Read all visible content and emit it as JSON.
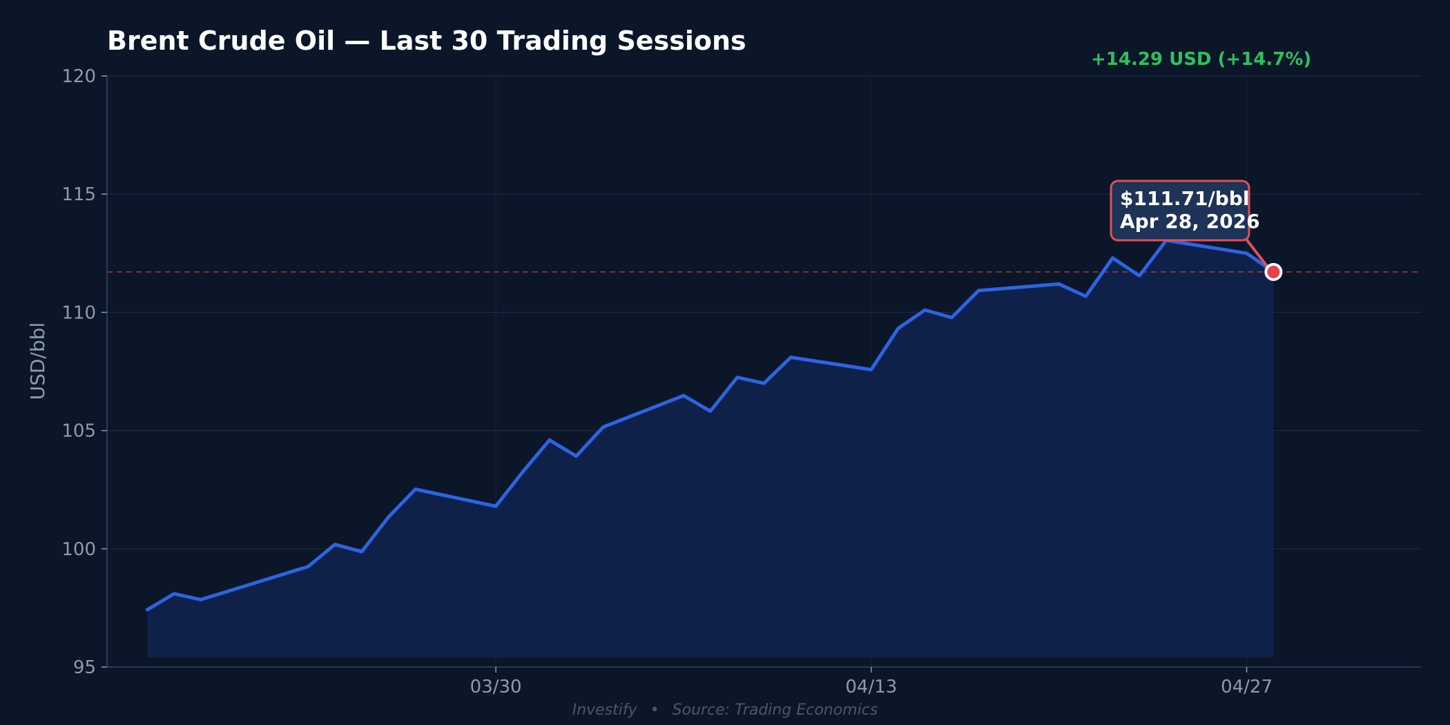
{
  "chart_data": {
    "type": "area",
    "title": "Brent Crude Oil — Last 30 Trading Sessions",
    "xlabel": "",
    "ylabel": "USD/bbl",
    "ylim": [
      95,
      120
    ],
    "yticks": [
      95,
      100,
      105,
      110,
      115,
      120
    ],
    "x_tick_labels": [
      "03/30",
      "04/13",
      "04/27"
    ],
    "x_tick_dates": [
      "2026-03-30",
      "2026-04-13",
      "2026-04-27"
    ],
    "x": [
      "2026-03-17",
      "2026-03-18",
      "2026-03-19",
      "2026-03-20",
      "2026-03-23",
      "2026-03-24",
      "2026-03-25",
      "2026-03-26",
      "2026-03-27",
      "2026-03-30",
      "2026-03-31",
      "2026-04-01",
      "2026-04-02",
      "2026-04-03",
      "2026-04-06",
      "2026-04-07",
      "2026-04-08",
      "2026-04-09",
      "2026-04-10",
      "2026-04-13",
      "2026-04-14",
      "2026-04-15",
      "2026-04-16",
      "2026-04-17",
      "2026-04-20",
      "2026-04-21",
      "2026-04-22",
      "2026-04-23",
      "2026-04-24",
      "2026-04-27",
      "2026-04-28"
    ],
    "series": [
      {
        "values": [
          97.42,
          98.1,
          97.85,
          null,
          99.25,
          100.18,
          99.88,
          101.35,
          102.52,
          101.8,
          103.25,
          104.6,
          103.92,
          105.15,
          106.48,
          105.82,
          107.25,
          107.0,
          108.1,
          107.58,
          109.32,
          110.1,
          109.78,
          110.92,
          111.2,
          110.68,
          112.3,
          111.55,
          113.05,
          112.5,
          111.71
        ]
      }
    ],
    "reference_line": 111.71,
    "grid": true,
    "legend": "none",
    "colors": {
      "background": "#0b1628",
      "line": "#2c64e3",
      "fill": "#12234f",
      "grid": "#1c2b45",
      "axis": "#2a3b58",
      "reference": "#c0404c",
      "marker": "#e8414c",
      "callout_bg": "#1e3358",
      "callout_border": "#e05058",
      "positive": "#2fbf5f"
    }
  },
  "change_label": "+14.29 USD (+14.7%)",
  "callout": {
    "price": "$111.71/bbl",
    "date": "Apr 28, 2026"
  },
  "footer": {
    "brand": "Investify",
    "separator": "•",
    "source": "Source: Trading Economics"
  }
}
